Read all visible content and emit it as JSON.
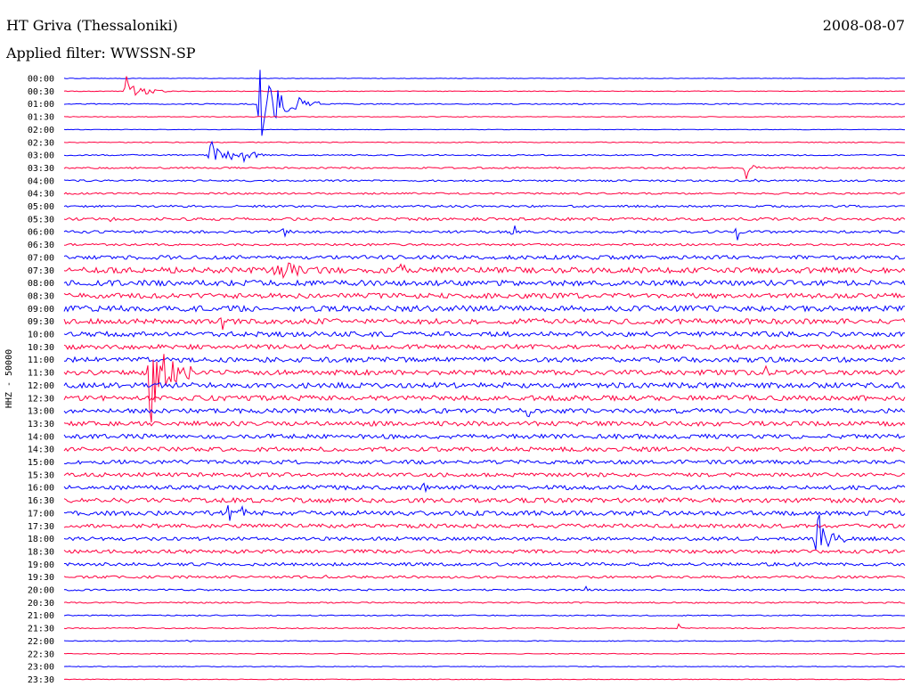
{
  "header": {
    "station": "HT Griva (Thessaloniki)",
    "date": "2008-08-07",
    "filter": "Applied filter: WWSSN-SP"
  },
  "chart_data": {
    "type": "helicorder",
    "ylabel": "HHZ - 50000",
    "colors": [
      "#0000ff",
      "#ff0040"
    ],
    "tick_labels": [
      "00:00",
      "00:30",
      "01:00",
      "01:30",
      "02:00",
      "02:30",
      "03:00",
      "03:30",
      "04:00",
      "04:30",
      "05:00",
      "05:30",
      "06:00",
      "06:30",
      "07:00",
      "07:30",
      "08:00",
      "08:30",
      "09:00",
      "09:30",
      "10:00",
      "10:30",
      "11:00",
      "11:30",
      "12:00",
      "12:30",
      "13:00",
      "13:30",
      "14:00",
      "14:30",
      "15:00",
      "15:30",
      "16:00",
      "16:30",
      "17:00",
      "17:30",
      "18:00",
      "18:30",
      "19:00",
      "19:30",
      "20:00",
      "20:30",
      "21:00",
      "21:30",
      "22:00",
      "22:30",
      "23:00",
      "23:30"
    ],
    "trace_noise": [
      0.3,
      0.4,
      0.6,
      0.4,
      0.3,
      0.5,
      0.7,
      0.9,
      1.0,
      1.0,
      1.2,
      1.6,
      1.4,
      1.2,
      2.2,
      3.2,
      3.0,
      2.8,
      3.2,
      3.0,
      2.8,
      2.6,
      2.8,
      2.8,
      3.0,
      2.8,
      2.6,
      2.6,
      2.5,
      2.4,
      2.2,
      2.2,
      2.4,
      2.6,
      2.6,
      2.2,
      2.0,
      2.0,
      1.8,
      1.4,
      1.0,
      0.8,
      0.6,
      0.6,
      0.5,
      0.4,
      0.4,
      0.4
    ],
    "events": [
      {
        "line": 1,
        "x_min": 2.2,
        "amp": 20,
        "dur_min": 1.5
      },
      {
        "line": 2,
        "x_min": 6.9,
        "amp": 45,
        "dur_min": 2.2
      },
      {
        "line": 6,
        "x_min": 5.2,
        "amp": 14,
        "dur_min": 2.0
      },
      {
        "line": 6,
        "x_min": 6.4,
        "amp": 10,
        "dur_min": 1.0
      },
      {
        "line": 7,
        "x_min": 24.3,
        "amp": 12,
        "dur_min": 0.9
      },
      {
        "line": 8,
        "x_min": 24.6,
        "amp": 6,
        "dur_min": 0.8
      },
      {
        "line": 11,
        "x_min": 1.6,
        "amp": 7,
        "dur_min": 0.6
      },
      {
        "line": 12,
        "x_min": 7.8,
        "amp": 9,
        "dur_min": 0.6
      },
      {
        "line": 12,
        "x_min": 16.0,
        "amp": 11,
        "dur_min": 0.6
      },
      {
        "line": 12,
        "x_min": 24.0,
        "amp": 12,
        "dur_min": 0.3
      },
      {
        "line": 15,
        "x_min": 7.5,
        "amp": 10,
        "dur_min": 5.0
      },
      {
        "line": 15,
        "x_min": 12.0,
        "amp": 8,
        "dur_min": 1.5
      },
      {
        "line": 19,
        "x_min": 5.6,
        "amp": 14,
        "dur_min": 0.4
      },
      {
        "line": 23,
        "x_min": 3.0,
        "amp": 60,
        "dur_min": 2.0
      },
      {
        "line": 23,
        "x_min": 25.0,
        "amp": 8,
        "dur_min": 1.0
      },
      {
        "line": 26,
        "x_min": 16.5,
        "amp": 8,
        "dur_min": 0.8
      },
      {
        "line": 26,
        "x_min": 18.0,
        "amp": 7,
        "dur_min": 0.6
      },
      {
        "line": 27,
        "x_min": 8.6,
        "amp": 8,
        "dur_min": 0.8
      },
      {
        "line": 31,
        "x_min": 10.0,
        "amp": 6,
        "dur_min": 0.5
      },
      {
        "line": 32,
        "x_min": 12.8,
        "amp": 6,
        "dur_min": 0.8
      },
      {
        "line": 34,
        "x_min": 5.8,
        "amp": 18,
        "dur_min": 1.5
      },
      {
        "line": 36,
        "x_min": 26.8,
        "amp": 30,
        "dur_min": 1.5
      },
      {
        "line": 39,
        "x_min": 9.3,
        "amp": 4,
        "dur_min": 0.3
      },
      {
        "line": 40,
        "x_min": 18.6,
        "amp": 5,
        "dur_min": 0.2
      },
      {
        "line": 43,
        "x_min": 21.9,
        "amp": 5,
        "dur_min": 0.3
      },
      {
        "line": 44,
        "x_min": 4.4,
        "amp": 4,
        "dur_min": 0.3
      }
    ]
  }
}
